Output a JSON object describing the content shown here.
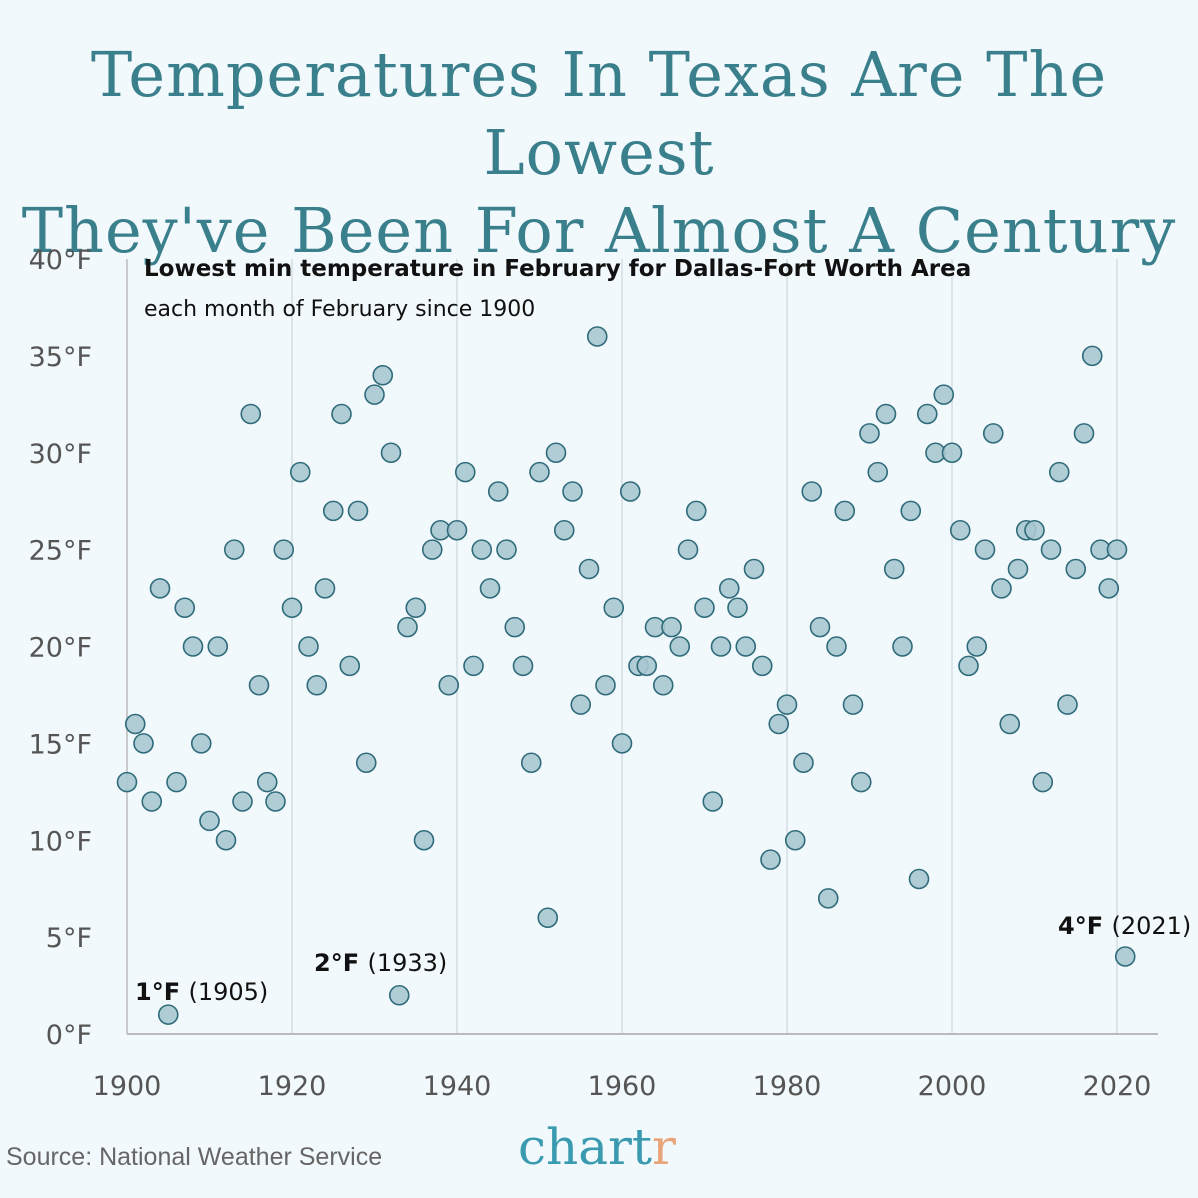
{
  "title_lines": [
    "Temperatures In Texas Are The Lowest",
    "They've Been For Almost A Century"
  ],
  "source": "Source: National Weather Service",
  "logo": {
    "main": "chart",
    "accent": "r"
  },
  "colors": {
    "title": "#3a7f8c",
    "marker_fill": "#a9c8d1",
    "marker_stroke": "#2f6b7a",
    "background": "#f2f9fc",
    "logo_main": "#3a9bb0",
    "logo_accent": "#e9a57a"
  },
  "chart_data": {
    "type": "scatter",
    "title": "Lowest min temperature in February for Dallas-Fort Worth Area",
    "subtitle": "each month of February since 1900",
    "xlim": [
      1900,
      2022
    ],
    "ylim": [
      0,
      40
    ],
    "xticks": [
      1900,
      1920,
      1940,
      1960,
      1980,
      2000,
      2020
    ],
    "xtick_labels": [
      "1900",
      "1920",
      "1940",
      "1960",
      "1980",
      "2000",
      "2020"
    ],
    "yticks": [
      0,
      5,
      10,
      15,
      20,
      25,
      30,
      35,
      40
    ],
    "ytick_labels": [
      "0°F",
      "5°F",
      "10°F",
      "15°F",
      "20°F",
      "25°F",
      "30°F",
      "35°F",
      "40°F"
    ],
    "grid": "vertical",
    "x": [
      1900,
      1901,
      1902,
      1903,
      1904,
      1905,
      1906,
      1907,
      1908,
      1909,
      1910,
      1911,
      1912,
      1913,
      1914,
      1915,
      1916,
      1917,
      1918,
      1919,
      1920,
      1921,
      1922,
      1923,
      1924,
      1925,
      1926,
      1927,
      1928,
      1929,
      1930,
      1931,
      1932,
      1933,
      1934,
      1935,
      1936,
      1937,
      1938,
      1939,
      1940,
      1941,
      1942,
      1943,
      1944,
      1945,
      1946,
      1947,
      1948,
      1949,
      1950,
      1951,
      1952,
      1953,
      1954,
      1955,
      1956,
      1957,
      1958,
      1959,
      1960,
      1961,
      1962,
      1963,
      1964,
      1965,
      1966,
      1967,
      1968,
      1969,
      1970,
      1971,
      1972,
      1973,
      1974,
      1975,
      1976,
      1977,
      1978,
      1979,
      1980,
      1981,
      1982,
      1983,
      1984,
      1985,
      1986,
      1987,
      1988,
      1989,
      1990,
      1991,
      1992,
      1993,
      1994,
      1995,
      1996,
      1997,
      1998,
      1999,
      2000,
      2001,
      2002,
      2003,
      2004,
      2005,
      2006,
      2007,
      2008,
      2009,
      2010,
      2011,
      2012,
      2013,
      2014,
      2015,
      2016,
      2017,
      2018,
      2019,
      2020,
      2021
    ],
    "y": [
      13,
      16,
      15,
      12,
      23,
      1,
      13,
      22,
      20,
      15,
      11,
      20,
      10,
      25,
      12,
      32,
      18,
      13,
      12,
      25,
      22,
      29,
      20,
      18,
      23,
      27,
      32,
      19,
      27,
      14,
      33,
      34,
      30,
      2,
      21,
      22,
      10,
      25,
      26,
      18,
      26,
      29,
      19,
      25,
      23,
      28,
      25,
      21,
      19,
      14,
      29,
      6,
      30,
      26,
      28,
      17,
      24,
      36,
      18,
      22,
      15,
      28,
      19,
      19,
      21,
      18,
      21,
      20,
      25,
      27,
      22,
      12,
      20,
      23,
      22,
      20,
      24,
      19,
      9,
      16,
      17,
      10,
      14,
      28,
      21,
      7,
      20,
      27,
      17,
      13,
      31,
      29,
      32,
      24,
      20,
      27,
      8,
      32,
      30,
      33,
      30,
      26,
      19,
      20,
      25,
      31,
      23,
      16,
      24,
      26,
      26,
      13,
      25,
      29,
      17,
      24,
      31,
      35,
      25,
      23,
      25,
      4
    ],
    "annotations": [
      {
        "x": 1905,
        "y": 1,
        "bold": "1°F",
        "text": "(1905)"
      },
      {
        "x": 1933,
        "y": 2,
        "bold": "2°F",
        "text": "(1933)"
      },
      {
        "x": 2021,
        "y": 4,
        "bold": "4°F",
        "text": "(2021)"
      }
    ]
  }
}
